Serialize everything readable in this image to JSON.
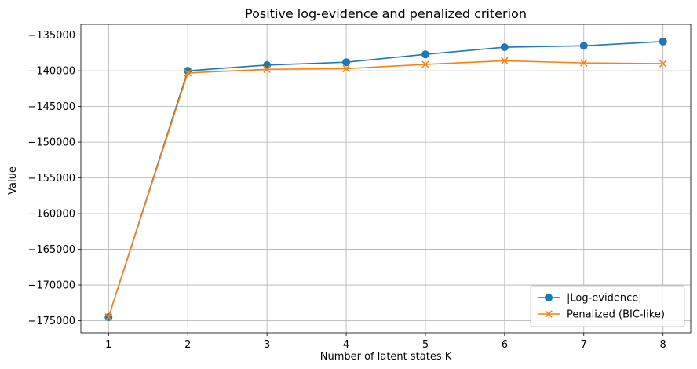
{
  "chart_data": {
    "type": "line",
    "title": "Positive log-evidence and penalized criterion",
    "xlabel": "Number of latent states K",
    "ylabel": "Value",
    "x": [
      1,
      2,
      3,
      4,
      5,
      6,
      7,
      8
    ],
    "xlim": [
      0.65,
      8.35
    ],
    "ylim": [
      -176700,
      -133500
    ],
    "yticks": [
      -175000,
      -170000,
      -165000,
      -160000,
      -155000,
      -150000,
      -145000,
      -140000,
      -135000
    ],
    "ytick_labels": [
      "−175000",
      "−170000",
      "−165000",
      "−160000",
      "−155000",
      "−150000",
      "−145000",
      "−140000",
      "−135000"
    ],
    "grid": true,
    "legend_position": "lower-right",
    "series": [
      {
        "name": "|Log-evidence|",
        "marker": "circle",
        "color": "#1f77b4",
        "values": [
          -174500,
          -140000,
          -139200,
          -138800,
          -137700,
          -136700,
          -136500,
          -135900
        ]
      },
      {
        "name": "Penalized (BIC-like)",
        "marker": "x",
        "color": "#ff7f0e",
        "values": [
          -174500,
          -140300,
          -139800,
          -139700,
          -139100,
          -138600,
          -138900,
          -139000
        ]
      }
    ]
  }
}
